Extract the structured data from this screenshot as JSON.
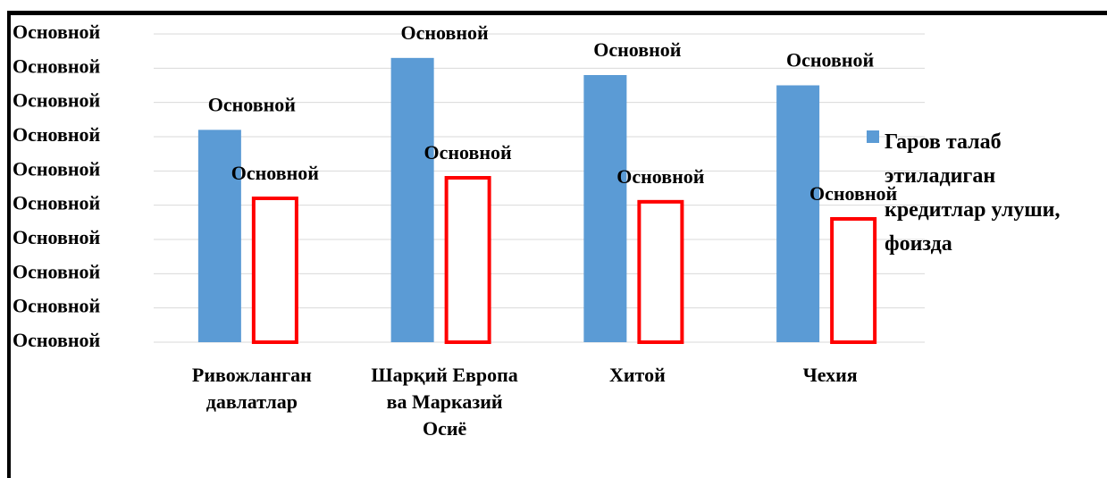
{
  "chart_data": {
    "type": "bar",
    "categories": [
      "Ривожланган давлатлар",
      "Шарқий Европа ва Марказий Осиё",
      "Хитой",
      "Чехия"
    ],
    "series": [
      {
        "name": "Гаров талаб этиладиган кредитлар улуши, фоизда",
        "color": "#5b9bd5",
        "style": "filled",
        "values": [
          62,
          83,
          78,
          75
        ],
        "value_labels": [
          "Основной",
          "Основной",
          "Основной",
          "Основной"
        ]
      },
      {
        "color": "#ff0000",
        "style": "outline",
        "values": [
          42,
          48,
          41,
          36
        ],
        "value_labels": [
          "Основной",
          "Основной",
          "Основной",
          "Основной"
        ]
      }
    ],
    "ylim": [
      0,
      90
    ],
    "yticks": [
      {
        "value": 0,
        "label": "Основной"
      },
      {
        "value": 10,
        "label": "Основной"
      },
      {
        "value": 20,
        "label": "Основной"
      },
      {
        "value": 30,
        "label": "Основной"
      },
      {
        "value": 40,
        "label": "Основной"
      },
      {
        "value": 50,
        "label": "Основной"
      },
      {
        "value": 60,
        "label": "Основной"
      },
      {
        "value": 70,
        "label": "Основной"
      },
      {
        "value": 80,
        "label": "Основной"
      },
      {
        "value": 90,
        "label": "Основной"
      }
    ],
    "grid": true,
    "legend": "right"
  }
}
